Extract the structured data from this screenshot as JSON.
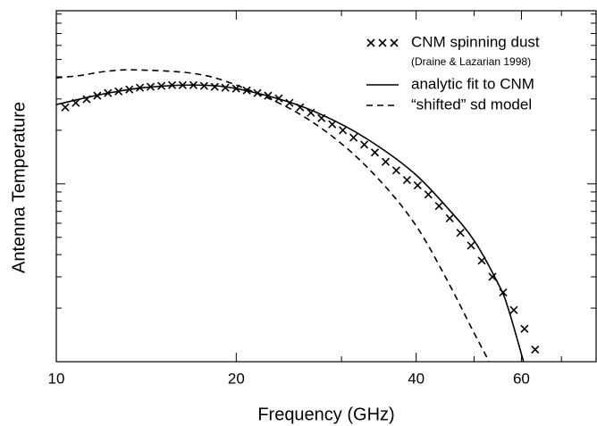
{
  "chart_data": {
    "type": "line",
    "x_label": "Frequency (GHz)",
    "y_label": "Antenna Temperature",
    "xscale": "log",
    "yscale": "log",
    "xlim": [
      10,
      80
    ],
    "ylim": [
      0.1,
      9.4
    ],
    "xticks": [
      10,
      20,
      40,
      60
    ],
    "xminor_ticks": [
      30,
      50,
      70
    ],
    "yticks": [
      0.2,
      0.3,
      0.4,
      0.5,
      0.6,
      0.7,
      0.8,
      0.9,
      1,
      2,
      3,
      4,
      5,
      6,
      7,
      8,
      9
    ],
    "legend": "upper right",
    "legend_note": "(Draine & Lazarian 1998)",
    "series": [
      {
        "name": "CNM spinning dust",
        "style": "cross",
        "color": "#000000",
        "x": [
          10.35,
          10.78,
          11.24,
          11.71,
          12.2,
          12.71,
          13.25,
          13.8,
          14.38,
          14.99,
          15.62,
          16.27,
          16.96,
          17.67,
          18.41,
          19.18,
          19.99,
          20.83,
          21.7,
          22.61,
          23.56,
          24.55,
          25.58,
          26.66,
          27.78,
          28.95,
          30.16,
          31.43,
          32.75,
          34.12,
          35.56,
          37.05,
          38.61,
          40.23,
          41.92,
          43.68,
          45.52,
          47.43,
          49.42,
          51.5,
          53.66,
          55.92,
          58.27,
          60.71,
          63.26
        ],
        "values": [
          2.69,
          2.85,
          2.99,
          3.13,
          3.24,
          3.31,
          3.39,
          3.47,
          3.51,
          3.55,
          3.59,
          3.59,
          3.59,
          3.55,
          3.51,
          3.47,
          3.43,
          3.35,
          3.24,
          3.13,
          3.02,
          2.85,
          2.69,
          2.51,
          2.34,
          2.16,
          2.0,
          1.82,
          1.66,
          1.5,
          1.33,
          1.19,
          1.05,
          0.98,
          0.87,
          0.75,
          0.64,
          0.53,
          0.45,
          0.37,
          0.3,
          0.245,
          0.195,
          0.153,
          0.117
        ]
      },
      {
        "name": "analytic fit to CNM",
        "style": "solid",
        "color": "#000000",
        "x": [
          10,
          12,
          14,
          17,
          20,
          25,
          30,
          35,
          40,
          45,
          50,
          55,
          57,
          60.5
        ],
        "values": [
          2.79,
          3.2,
          3.47,
          3.59,
          3.43,
          2.82,
          2.16,
          1.58,
          1.12,
          0.74,
          0.48,
          0.27,
          0.2,
          0.1
        ]
      },
      {
        "name": "“shifted” sd model",
        "style": "dashed",
        "color": "#000000",
        "x": [
          10,
          11,
          12,
          13.5,
          17,
          20,
          25,
          30,
          35,
          40,
          45,
          50,
          53
        ],
        "values": [
          3.94,
          4.07,
          4.27,
          4.37,
          4.17,
          3.59,
          2.57,
          1.68,
          1.02,
          0.58,
          0.29,
          0.145,
          0.1
        ]
      }
    ]
  }
}
